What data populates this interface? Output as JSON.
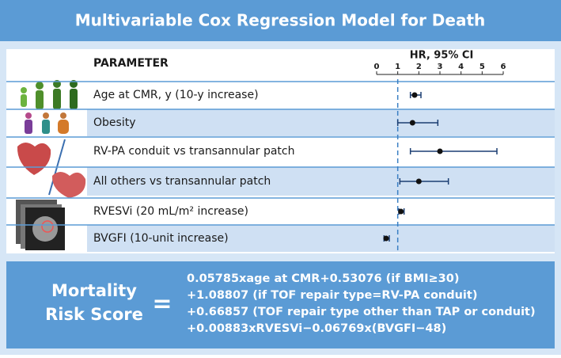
{
  "chart_data": {
    "type": "forest",
    "title": "Multivariable Cox Regression Model for Death",
    "column_header": "PARAMETER",
    "axis_label": "HR, 95% CI",
    "categories": [
      "Age at CMR, y (10-y increase)",
      "Obesity",
      "RV-PA conduit vs transannular patch",
      "All others vs transannular patch",
      "RVESVi (20 mL/m² increase)",
      "BVGFI (10-unit increase)"
    ],
    "values": [
      1.8,
      1.7,
      3.0,
      2.0,
      1.15,
      0.45
    ],
    "lower": [
      1.6,
      1.0,
      1.6,
      1.1,
      1.05,
      0.35
    ],
    "upper": [
      2.1,
      2.9,
      5.7,
      3.4,
      1.3,
      0.6
    ],
    "xlim": [
      0,
      6
    ],
    "xticks": [
      0,
      1,
      2,
      3,
      4,
      5,
      6
    ],
    "reference_line": 1,
    "color": "#1c3f73"
  },
  "formula": {
    "label_lines": [
      "Mortality",
      "Risk Score"
    ],
    "equals": "=",
    "lines": [
      "0.05785xage at CMR+0.53076 (if BMI≥30)",
      "+1.08807 (if TOF repair type=RV-PA conduit)",
      "+0.66857 (TOF repair type other than TAP or conduit)",
      "+0.00883xRVESVi−0.06769x(BVGFI−48)"
    ]
  }
}
